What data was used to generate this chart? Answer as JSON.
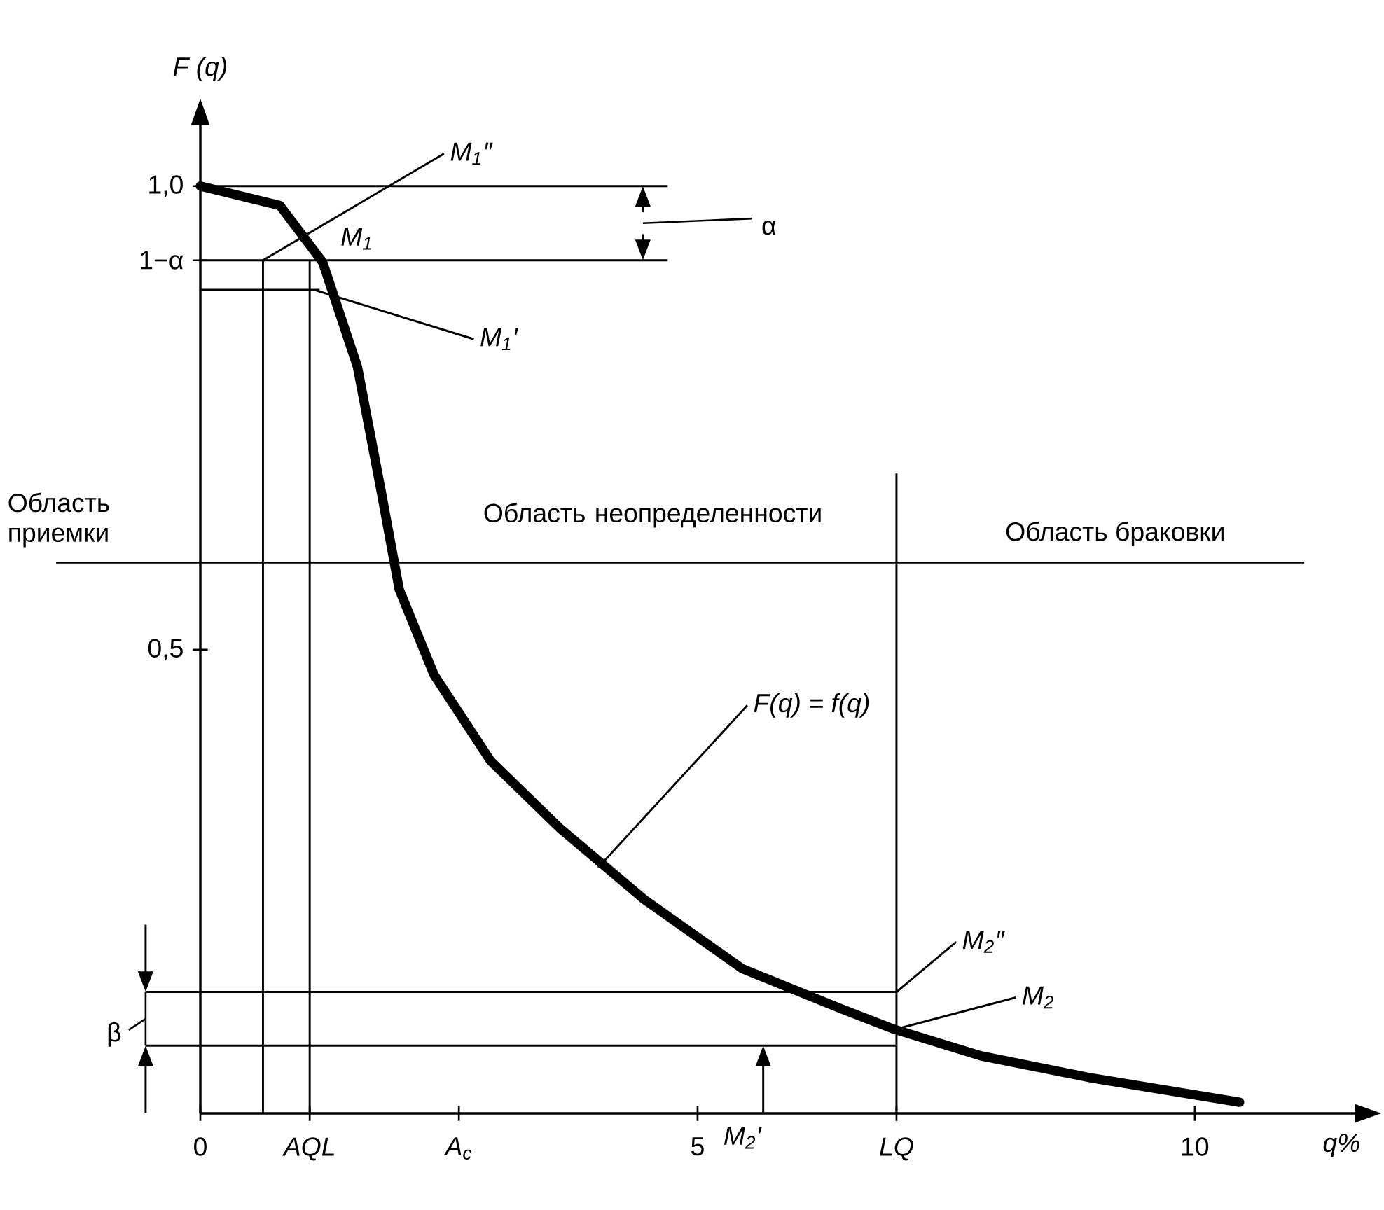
{
  "chart_data": {
    "type": "line",
    "xlabel": "q%",
    "ylabel": "F (q)",
    "series": [
      {
        "color": "#000000",
        "x": [
          0,
          0.8,
          1.23,
          1.58,
          1.82,
          2.0,
          2.35,
          2.92,
          3.62,
          4.46,
          5.45,
          6.44,
          6.97,
          7.85,
          8.97,
          10.45
        ],
        "values": [
          1.0,
          0.979,
          0.918,
          0.805,
          0.67,
          0.565,
          0.473,
          0.38,
          0.307,
          0.231,
          0.156,
          0.113,
          0.091,
          0.062,
          0.038,
          0.012
        ]
      }
    ],
    "xlim": [
      0,
      11.65
    ],
    "ylim": [
      0,
      1.07
    ],
    "xticks": [
      0,
      {
        "value": 1.1,
        "label": "AQL"
      },
      {
        "value": 2.6,
        "label": "A$_{c}$"
      },
      5,
      {
        "value": 7,
        "label": "LQ"
      },
      10
    ],
    "yticks": [
      {
        "value": 0.5,
        "label": "0,5"
      },
      {
        "value": 0.92,
        "label": "1−α"
      },
      {
        "value": 1.0,
        "label": "1,0"
      }
    ],
    "ref_lines": [
      {
        "axis": "y",
        "value": 1.0
      },
      {
        "axis": "y",
        "value": 0.92
      },
      {
        "axis": "y",
        "value": 0.888
      },
      {
        "axis": "y",
        "value": 0.594
      },
      {
        "axis": "y",
        "value": 0.131
      },
      {
        "axis": "y",
        "value": 0.073
      },
      {
        "axis": "x",
        "value": 0.63
      },
      {
        "axis": "x",
        "value": 1.1
      },
      {
        "axis": "x",
        "value": 7
      }
    ],
    "annotations": [
      {
        "text": "M$_{1}$″",
        "x": 0.63,
        "y": 0.92
      },
      {
        "text": "M$_{1}$",
        "x": 1.1,
        "y": 0.92
      },
      {
        "text": "M$_{1}$′",
        "x": 1.15,
        "y": 0.888
      },
      "α",
      "β",
      {
        "text": "F(q) = f(q)",
        "x": 4.0,
        "y": 0.265
      },
      {
        "text": "M$_{2}$″",
        "x": 7,
        "y": 0.131
      },
      {
        "text": "M$_{2}$",
        "x": 7,
        "y": 0.091
      },
      "M$_{2}$′",
      "Область приемки",
      "Область неопределенности",
      "Область браковки"
    ],
    "grid": false,
    "marker": "none",
    "line_style": "solid"
  }
}
